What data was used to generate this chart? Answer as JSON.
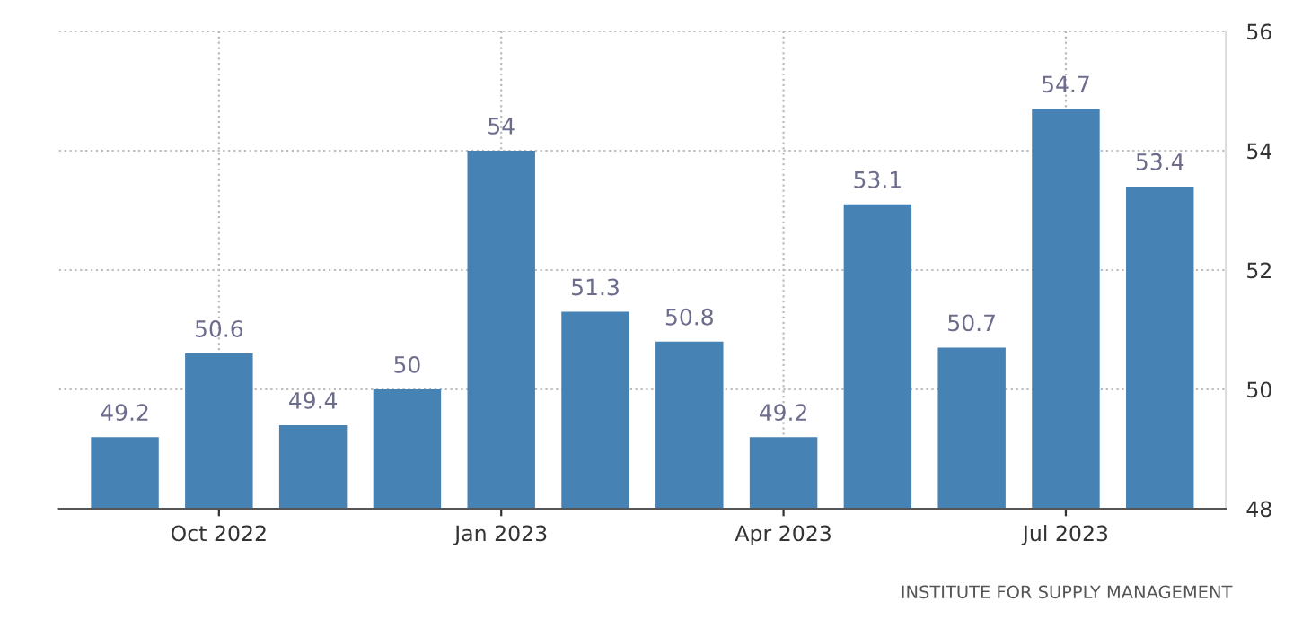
{
  "chart_data": {
    "type": "bar",
    "categories": [
      null,
      "Oct 2022",
      null,
      null,
      "Jan 2023",
      null,
      null,
      "Apr 2023",
      null,
      null,
      "Jul 2023",
      null
    ],
    "values": [
      49.2,
      50.6,
      49.4,
      50,
      54,
      51.3,
      50.8,
      49.2,
      53.1,
      50.7,
      54.7,
      53.4
    ],
    "color": "#4682b4",
    "ylim": [
      48,
      56
    ],
    "yticks": [
      48,
      50,
      52,
      54,
      56
    ],
    "grid": true,
    "data_labels": true,
    "annotations": [
      "INSTITUTE FOR SUPPLY MANAGEMENT"
    ]
  }
}
